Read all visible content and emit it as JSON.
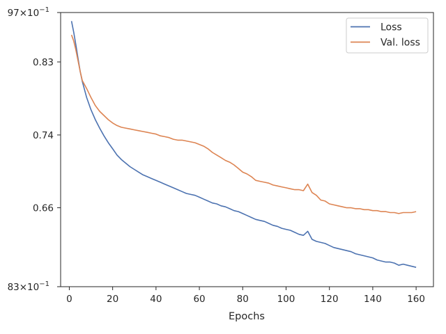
{
  "chart_data": {
    "type": "line",
    "title": "",
    "xlabel": "Epochs",
    "ylabel": "",
    "xlim": [
      -4,
      168
    ],
    "ylim": [
      0.583,
      0.897
    ],
    "yscale": "log",
    "x_ticks": [
      0,
      20,
      40,
      60,
      80,
      100,
      120,
      140,
      160
    ],
    "y_ticks": [
      0.66,
      0.74,
      0.83
    ],
    "y_tick_labels": [
      "0.66",
      "0.74",
      "0.83"
    ],
    "y_edge_labels": {
      "top_prefix": "97",
      "top_times": "×10",
      "top_exp": "−1",
      "bottom_prefix": "83",
      "bottom_times": "×10",
      "bottom_exp": "−1"
    },
    "grid": false,
    "legend_position": "top-right",
    "series": [
      {
        "name": "Loss",
        "color": "#4c72b0",
        "x": [
          1,
          2,
          3,
          4,
          5,
          6,
          8,
          10,
          12,
          14,
          16,
          18,
          20,
          22,
          24,
          26,
          28,
          30,
          32,
          34,
          36,
          38,
          40,
          42,
          44,
          46,
          48,
          50,
          52,
          54,
          56,
          58,
          60,
          62,
          64,
          66,
          68,
          70,
          72,
          74,
          76,
          78,
          80,
          82,
          84,
          86,
          88,
          90,
          92,
          94,
          96,
          98,
          100,
          102,
          104,
          106,
          108,
          110,
          112,
          114,
          116,
          118,
          120,
          122,
          124,
          126,
          128,
          130,
          132,
          134,
          136,
          138,
          140,
          142,
          144,
          146,
          148,
          150,
          152,
          154,
          156,
          158,
          160
        ],
        "values": [
          0.885,
          0.87,
          0.853,
          0.835,
          0.818,
          0.805,
          0.785,
          0.77,
          0.758,
          0.748,
          0.739,
          0.731,
          0.724,
          0.717,
          0.712,
          0.708,
          0.704,
          0.701,
          0.698,
          0.695,
          0.693,
          0.691,
          0.689,
          0.687,
          0.685,
          0.683,
          0.681,
          0.679,
          0.677,
          0.675,
          0.674,
          0.673,
          0.671,
          0.669,
          0.667,
          0.665,
          0.664,
          0.662,
          0.661,
          0.659,
          0.657,
          0.656,
          0.654,
          0.652,
          0.65,
          0.648,
          0.647,
          0.646,
          0.644,
          0.642,
          0.641,
          0.639,
          0.638,
          0.637,
          0.635,
          0.633,
          0.632,
          0.636,
          0.628,
          0.626,
          0.625,
          0.624,
          0.622,
          0.62,
          0.619,
          0.618,
          0.617,
          0.616,
          0.614,
          0.613,
          0.612,
          0.611,
          0.61,
          0.608,
          0.607,
          0.606,
          0.606,
          0.605,
          0.603,
          0.604,
          0.603,
          0.602,
          0.601
        ]
      },
      {
        "name": "Val. loss",
        "color": "#dd8452",
        "x": [
          1,
          2,
          3,
          4,
          5,
          6,
          8,
          10,
          12,
          14,
          16,
          18,
          20,
          22,
          24,
          26,
          28,
          30,
          32,
          34,
          36,
          38,
          40,
          42,
          44,
          46,
          48,
          50,
          52,
          54,
          56,
          58,
          60,
          62,
          64,
          66,
          68,
          70,
          72,
          74,
          76,
          78,
          80,
          82,
          84,
          86,
          88,
          90,
          92,
          94,
          96,
          98,
          100,
          102,
          104,
          106,
          108,
          110,
          112,
          114,
          116,
          118,
          120,
          122,
          124,
          126,
          128,
          130,
          132,
          134,
          136,
          138,
          140,
          142,
          144,
          146,
          148,
          150,
          152,
          154,
          156,
          158,
          160
        ],
        "values": [
          0.866,
          0.858,
          0.846,
          0.832,
          0.818,
          0.806,
          0.796,
          0.785,
          0.775,
          0.768,
          0.763,
          0.758,
          0.754,
          0.751,
          0.749,
          0.748,
          0.747,
          0.746,
          0.745,
          0.744,
          0.743,
          0.742,
          0.741,
          0.739,
          0.738,
          0.737,
          0.735,
          0.734,
          0.734,
          0.733,
          0.732,
          0.731,
          0.729,
          0.727,
          0.724,
          0.72,
          0.717,
          0.714,
          0.711,
          0.709,
          0.706,
          0.702,
          0.698,
          0.696,
          0.693,
          0.689,
          0.688,
          0.687,
          0.686,
          0.684,
          0.683,
          0.682,
          0.681,
          0.68,
          0.679,
          0.679,
          0.678,
          0.685,
          0.676,
          0.673,
          0.668,
          0.667,
          0.664,
          0.663,
          0.662,
          0.661,
          0.66,
          0.66,
          0.659,
          0.659,
          0.658,
          0.658,
          0.657,
          0.657,
          0.656,
          0.656,
          0.655,
          0.655,
          0.654,
          0.655,
          0.655,
          0.655,
          0.656
        ]
      }
    ]
  }
}
